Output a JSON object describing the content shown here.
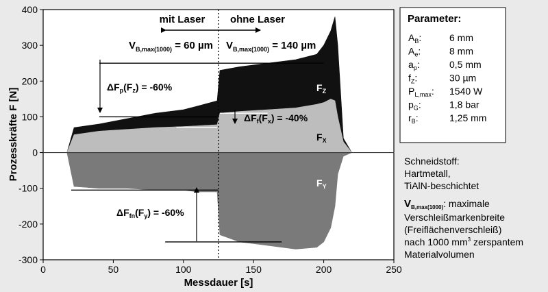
{
  "chart_data": {
    "type": "area",
    "xlabel": "Messdauer [s]",
    "ylabel": "Prozesskräfte F [N]",
    "xlim": [
      0,
      250
    ],
    "ylim": [
      -300,
      400
    ],
    "xticks": [
      "0",
      "50",
      "100",
      "150",
      "200",
      "250"
    ],
    "yticks": [
      "-300",
      "-200",
      "-100",
      "0",
      "100",
      "200",
      "300",
      "400"
    ],
    "grid": false,
    "series": [
      {
        "name": "Fz",
        "color": "#111111",
        "x": [
          0,
          17,
          22,
          40,
          60,
          80,
          100,
          110,
          124,
          126,
          140,
          160,
          180,
          195,
          200,
          205,
          208,
          210,
          214,
          220,
          250
        ],
        "y": [
          0,
          0,
          70,
          80,
          95,
          110,
          120,
          130,
          145,
          230,
          240,
          250,
          260,
          275,
          300,
          340,
          380,
          300,
          40,
          0,
          0
        ]
      },
      {
        "name": "Fx",
        "color": "#bdbdbd",
        "x": [
          0,
          17,
          22,
          40,
          60,
          80,
          100,
          110,
          124,
          126,
          140,
          160,
          180,
          195,
          200,
          205,
          208,
          210,
          214,
          220,
          250
        ],
        "y": [
          0,
          0,
          50,
          60,
          65,
          70,
          73,
          75,
          78,
          110,
          115,
          120,
          125,
          135,
          140,
          150,
          145,
          100,
          30,
          0,
          0
        ]
      },
      {
        "name": "Fy",
        "color": "#7a7a7a",
        "x": [
          0,
          17,
          22,
          40,
          60,
          80,
          100,
          110,
          124,
          126,
          140,
          160,
          180,
          195,
          200,
          205,
          208,
          210,
          214,
          220,
          250
        ],
        "y": [
          0,
          0,
          -95,
          -100,
          -100,
          -105,
          -105,
          -110,
          -110,
          -230,
          -250,
          -260,
          -270,
          -265,
          -250,
          -210,
          -150,
          -60,
          -10,
          0,
          0
        ]
      }
    ],
    "divider_x": 125,
    "annotations": {
      "mit_laser": "mit Laser",
      "ohne_laser": "ohne Laser",
      "vb_left_main": "V",
      "vb_left_sub": "B,max(1000)",
      "vb_left_val": " = 60 µm",
      "vb_right_main": "V",
      "vb_right_sub": "B,max(1000)",
      "vb_right_val": " = 140 µm",
      "dfp_a": "ΔF",
      "dfp_b": "p",
      "dfp_c": "(F",
      "dfp_d": "z",
      "dfp_e": ") = -60%",
      "dff_a": "ΔF",
      "dff_b": "f",
      "dff_c": "(F",
      "dff_d": "x",
      "dff_e": ") = -40%",
      "dffn_a": "ΔF",
      "dffn_b": "fn",
      "dffn_c": "(F",
      "dffn_d": "y",
      "dffn_e": ") = -60%",
      "fz_a": "F",
      "fz_b": "Z",
      "fx_a": "F",
      "fx_b": "X",
      "fy_a": "F",
      "fy_b": "Y"
    },
    "ref_lines": {
      "fz_with": 100,
      "fz_without": 250,
      "fx_with": 70,
      "fx_without": 110,
      "fy_with": -105,
      "fy_without": -250
    }
  },
  "params": {
    "title": "Parameter:",
    "rows": [
      {
        "a": "A",
        "b": "B",
        "c": ":",
        "v": "6 mm"
      },
      {
        "a": "A",
        "b": "e",
        "c": ":",
        "v": "8 mm"
      },
      {
        "a": "a",
        "b": "p",
        "c": ":",
        "v": "0,5 mm"
      },
      {
        "a": "f",
        "b": "Z",
        "c": ":",
        "v": "30 µm"
      },
      {
        "a": "P",
        "b": "L,max",
        "c": ":",
        "v": "1540 W"
      },
      {
        "a": "p",
        "b": "G",
        "c": ":",
        "v": "1,8 bar"
      },
      {
        "a": "r",
        "b": "B",
        "c": ":",
        "v": "1,25 mm"
      }
    ]
  },
  "notes": {
    "n1": "Schneidstoff:",
    "n2": "Hartmetall,",
    "n3": "TiAlN-beschichtet",
    "vb_main": "V",
    "vb_sub": "B,max(1000)",
    "vb_rest": ": maximale",
    "n5": "Verschleißmarkenbreite",
    "n6": "(Freiflächenverschleiß)",
    "n7a": "nach 1000 mm",
    "n7b": "3",
    "n7c": " zerspantem",
    "n8": "Materialvolumen"
  }
}
